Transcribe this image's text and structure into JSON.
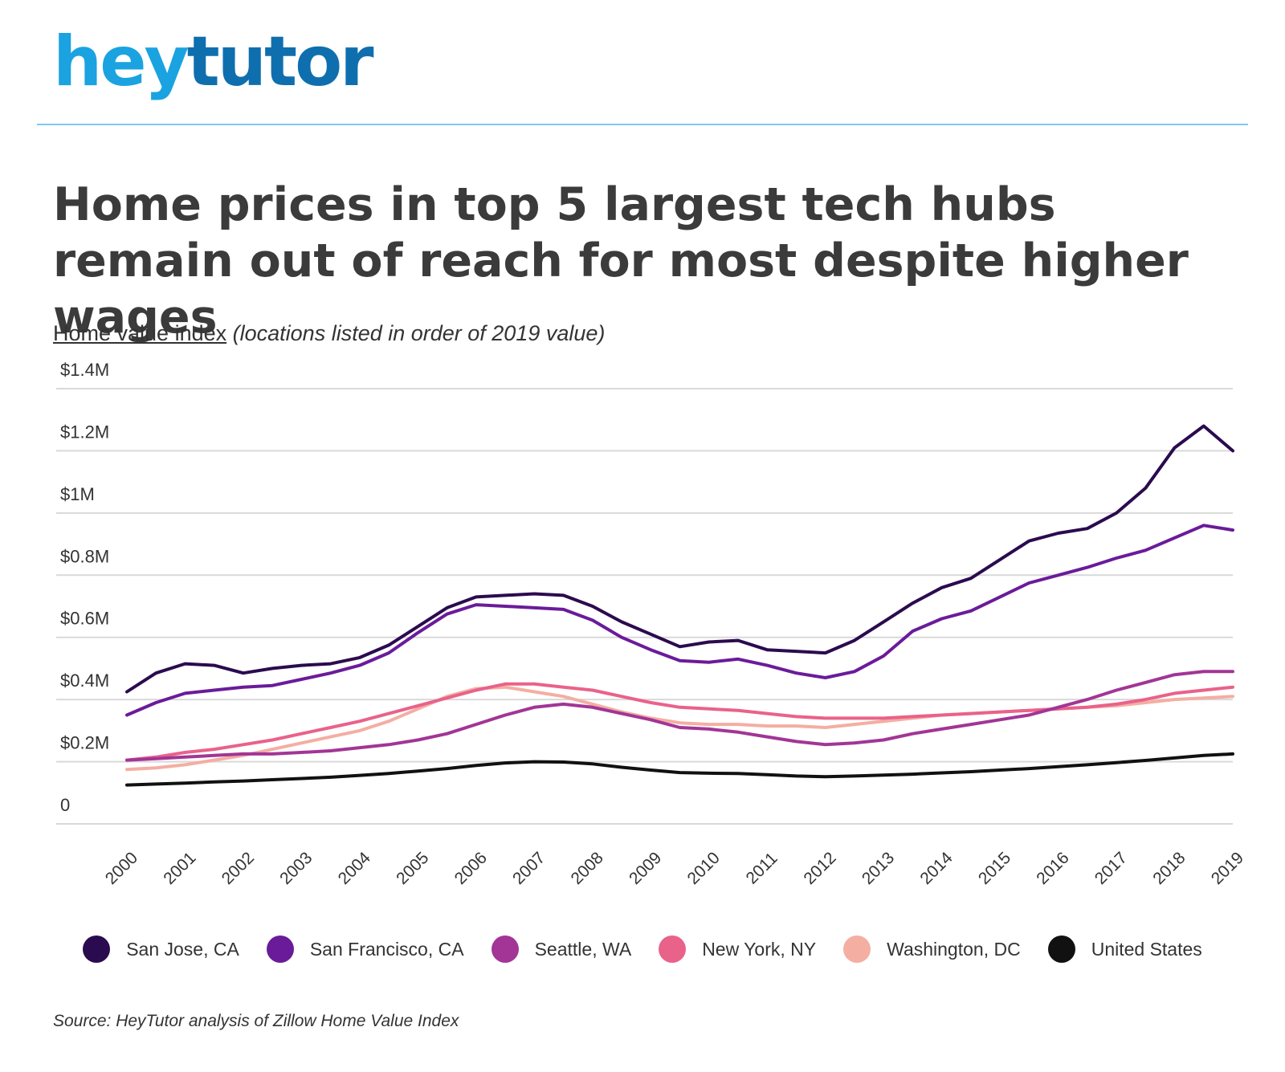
{
  "logo": {
    "part1": "hey",
    "part2": "tutor"
  },
  "title": "Home prices in top 5 largest tech hubs remain out of reach for most despite higher wages",
  "subtitle": {
    "main": "Home value index",
    "note": "(locations listed in order of 2019 value)"
  },
  "source": "Source: HeyTutor analysis of Zillow Home Value Index",
  "chart_data": {
    "type": "line",
    "title": "Home prices in top 5 largest tech hubs remain out of reach for most despite higher wages",
    "ylabel": "Home value index",
    "xlabel": "",
    "xlim": [
      2000,
      2019
    ],
    "ylim": [
      0,
      1400000
    ],
    "xticks": [
      2000,
      2001,
      2002,
      2003,
      2004,
      2005,
      2006,
      2007,
      2008,
      2009,
      2010,
      2011,
      2012,
      2013,
      2014,
      2015,
      2016,
      2017,
      2018,
      2019
    ],
    "x_tick_labels": [
      "2000",
      "2001",
      "2002",
      "2003",
      "2004",
      "2005",
      "2006",
      "2007",
      "2008",
      "2009",
      "2010",
      "2011",
      "2012",
      "2013",
      "2014",
      "2015",
      "2016",
      "2017",
      "2018",
      "2019"
    ],
    "yticks": [
      0,
      200000,
      400000,
      600000,
      800000,
      1000000,
      1200000,
      1400000
    ],
    "y_tick_labels": [
      "0",
      "$0.2M",
      "$0.4M",
      "$0.6M",
      "$0.8M",
      "$1M",
      "$1.2M",
      "$1.4M"
    ],
    "grid": true,
    "legend": "bottom",
    "x": [
      2000,
      2000.5,
      2001,
      2001.5,
      2002,
      2002.5,
      2003,
      2003.5,
      2004,
      2004.5,
      2005,
      2005.5,
      2006,
      2006.5,
      2007,
      2007.5,
      2008,
      2008.5,
      2009,
      2009.5,
      2010,
      2010.5,
      2011,
      2011.5,
      2012,
      2012.5,
      2013,
      2013.5,
      2014,
      2014.5,
      2015,
      2015.5,
      2016,
      2016.5,
      2017,
      2017.5,
      2018,
      2018.5,
      2019
    ],
    "series": [
      {
        "name": "San Jose, CA",
        "color": "#2b0b4f",
        "values": [
          425000,
          485000,
          515000,
          510000,
          485000,
          500000,
          510000,
          515000,
          535000,
          575000,
          635000,
          695000,
          730000,
          735000,
          740000,
          735000,
          700000,
          650000,
          610000,
          570000,
          585000,
          590000,
          560000,
          555000,
          550000,
          590000,
          650000,
          710000,
          760000,
          790000,
          850000,
          910000,
          935000,
          950000,
          1000000,
          1080000,
          1210000,
          1280000,
          1200000
        ]
      },
      {
        "name": "San Francisco, CA",
        "color": "#6a1b9a",
        "values": [
          350000,
          390000,
          420000,
          430000,
          440000,
          445000,
          465000,
          485000,
          510000,
          550000,
          615000,
          675000,
          705000,
          700000,
          695000,
          690000,
          655000,
          600000,
          560000,
          525000,
          520000,
          530000,
          510000,
          485000,
          470000,
          490000,
          540000,
          620000,
          660000,
          685000,
          730000,
          775000,
          800000,
          825000,
          855000,
          880000,
          920000,
          960000,
          945000
        ]
      },
      {
        "name": "Seattle, WA",
        "color": "#a23596",
        "values": [
          205000,
          210000,
          215000,
          220000,
          225000,
          225000,
          230000,
          235000,
          245000,
          255000,
          270000,
          290000,
          320000,
          350000,
          375000,
          385000,
          375000,
          355000,
          335000,
          310000,
          305000,
          295000,
          280000,
          265000,
          255000,
          260000,
          270000,
          290000,
          305000,
          320000,
          335000,
          350000,
          375000,
          400000,
          430000,
          455000,
          480000,
          490000,
          490000
        ]
      },
      {
        "name": "New York, NY",
        "color": "#e9628a",
        "values": [
          205000,
          215000,
          230000,
          240000,
          255000,
          270000,
          290000,
          310000,
          330000,
          355000,
          380000,
          405000,
          430000,
          450000,
          450000,
          440000,
          430000,
          410000,
          390000,
          375000,
          370000,
          365000,
          355000,
          345000,
          340000,
          340000,
          340000,
          345000,
          350000,
          355000,
          360000,
          365000,
          370000,
          375000,
          385000,
          400000,
          420000,
          430000,
          440000
        ]
      },
      {
        "name": "Washington, DC",
        "color": "#f4aea2",
        "values": [
          175000,
          180000,
          190000,
          205000,
          220000,
          240000,
          260000,
          280000,
          300000,
          330000,
          370000,
          410000,
          435000,
          440000,
          425000,
          410000,
          385000,
          360000,
          340000,
          325000,
          320000,
          320000,
          315000,
          315000,
          310000,
          320000,
          330000,
          340000,
          350000,
          355000,
          360000,
          365000,
          370000,
          375000,
          380000,
          390000,
          400000,
          405000,
          410000
        ]
      },
      {
        "name": "United States",
        "color": "#111111",
        "values": [
          125000,
          128000,
          131000,
          135000,
          138000,
          142000,
          146000,
          150000,
          156000,
          162000,
          170000,
          178000,
          188000,
          196000,
          200000,
          199000,
          193000,
          182000,
          173000,
          165000,
          163000,
          162000,
          158000,
          154000,
          152000,
          154000,
          157000,
          160000,
          164000,
          168000,
          173000,
          178000,
          184000,
          190000,
          197000,
          204000,
          212000,
          220000,
          225000
        ]
      }
    ]
  }
}
